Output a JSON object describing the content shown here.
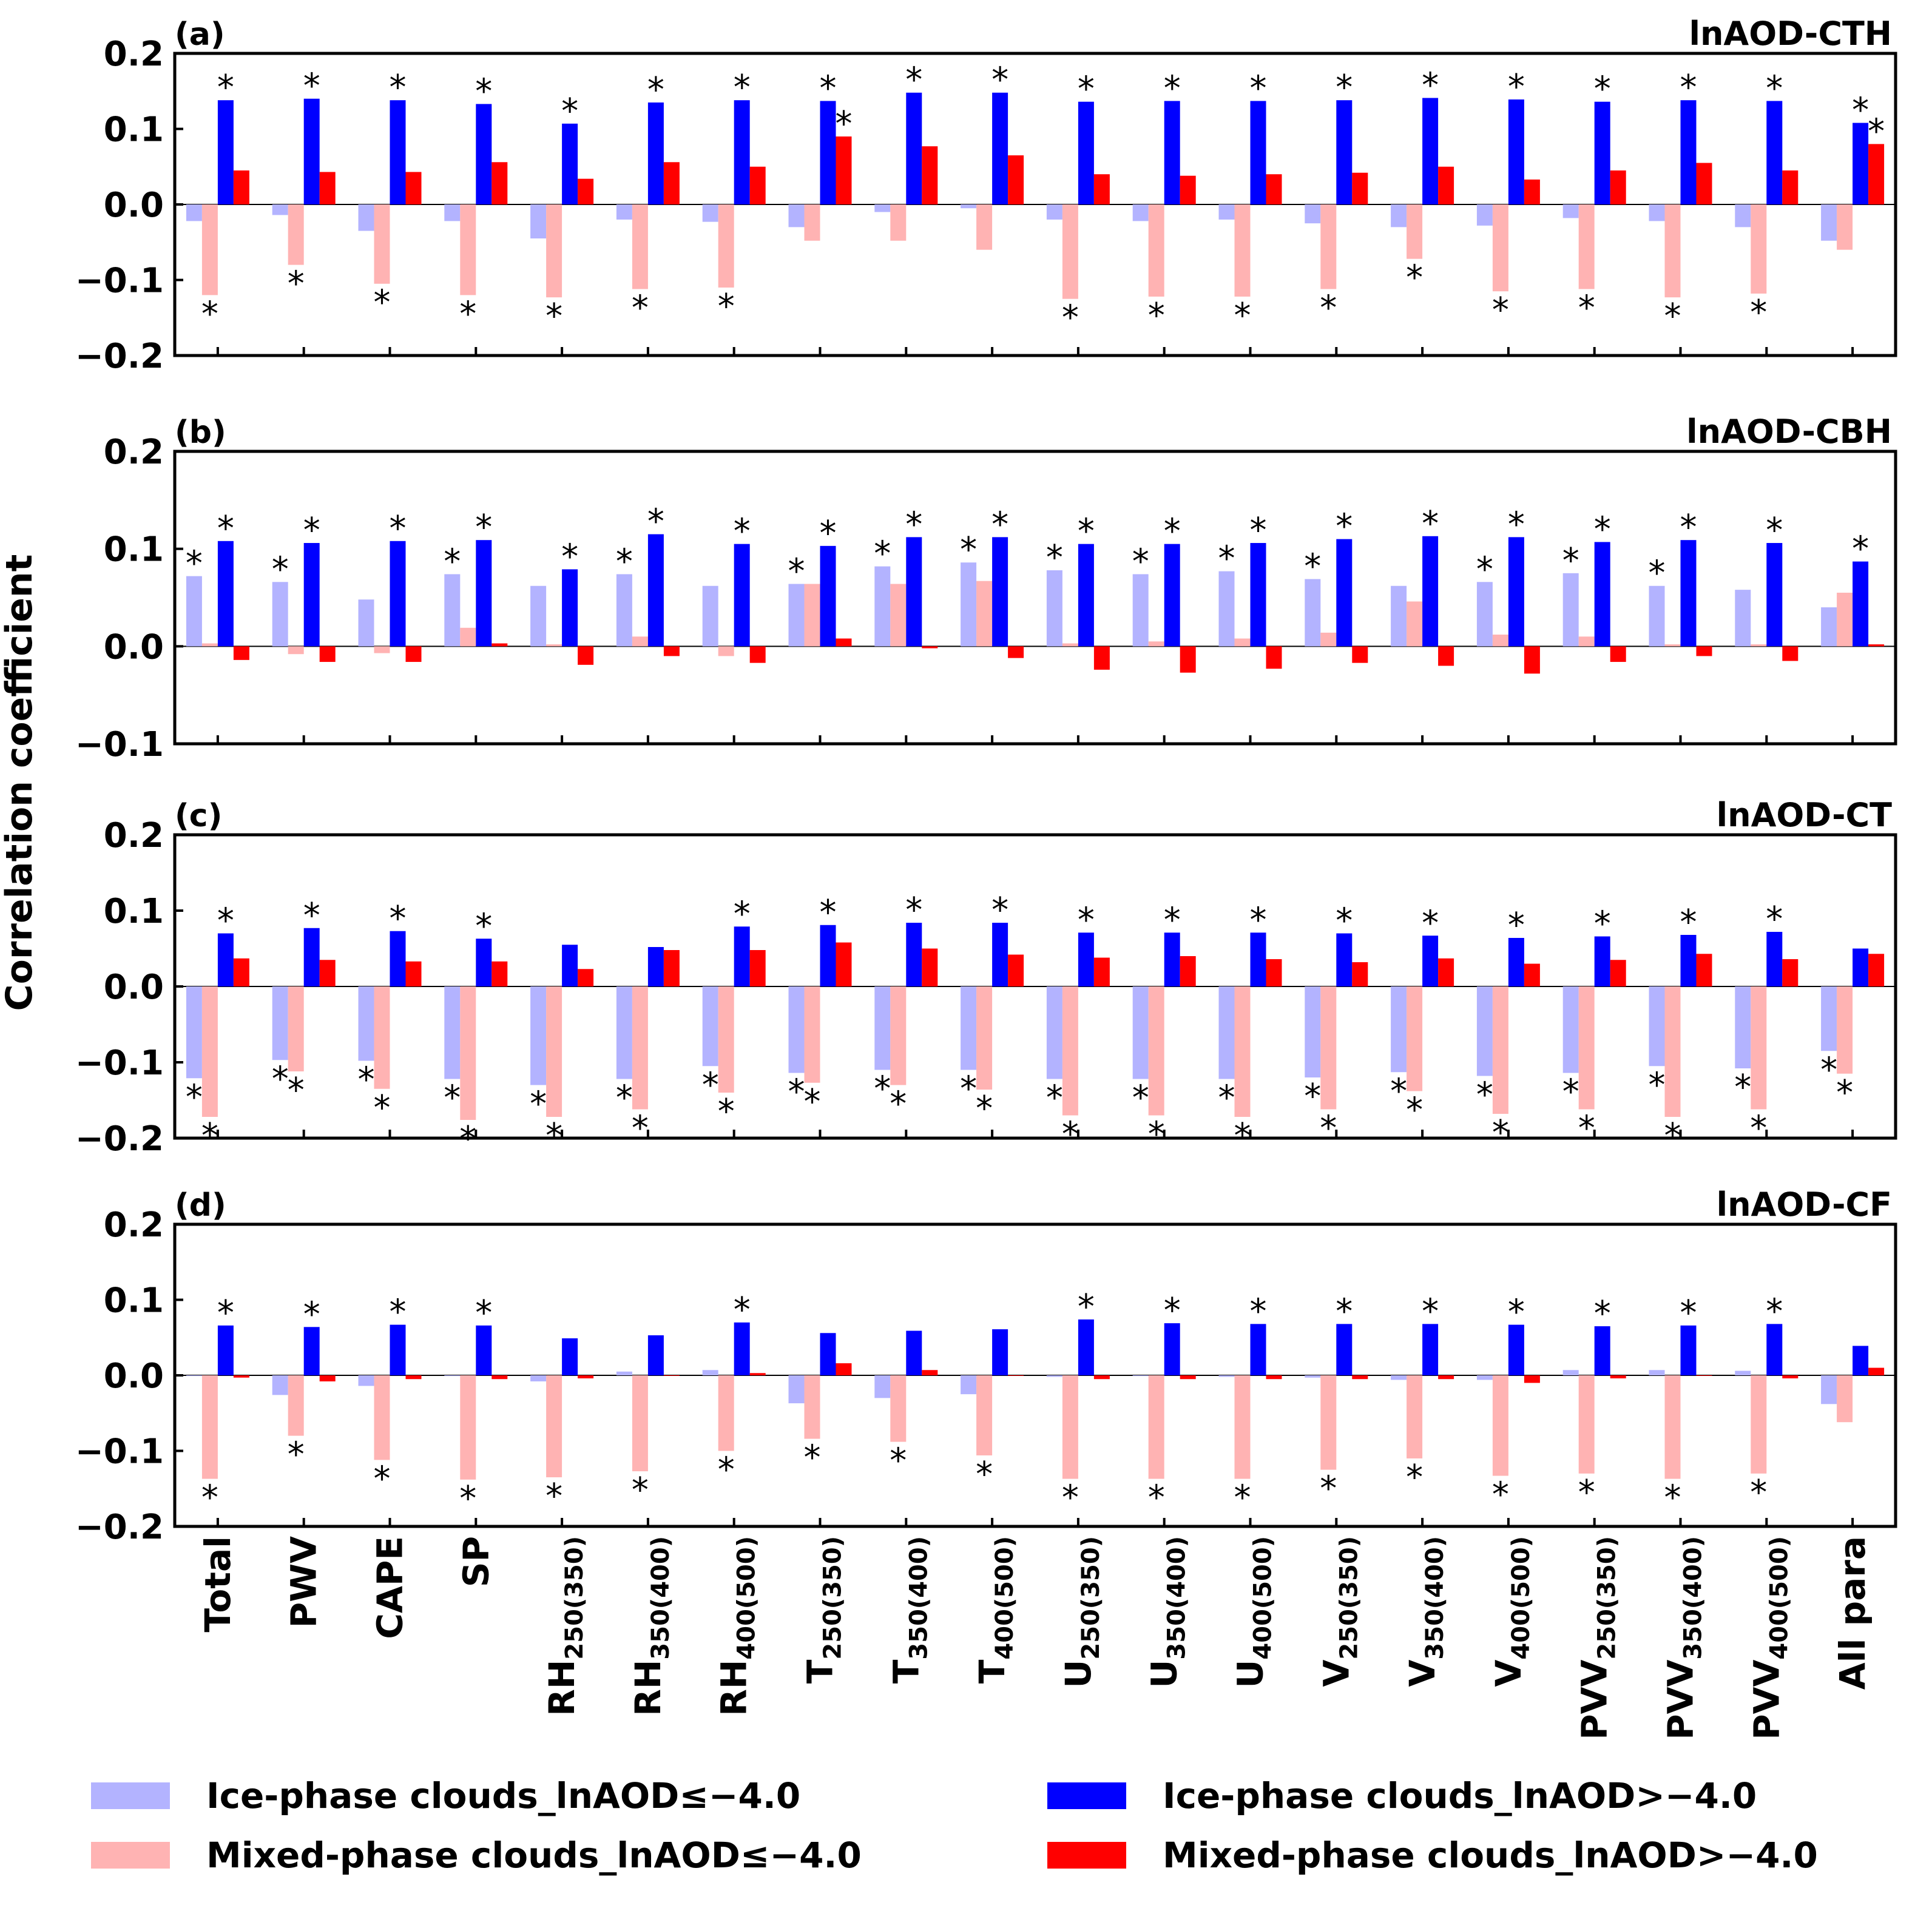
{
  "chart_data": {
    "type": "bar",
    "ylabel": "Correlation coefficient",
    "categories": [
      {
        "main": "Total",
        "sub": ""
      },
      {
        "main": "PWV",
        "sub": ""
      },
      {
        "main": "CAPE",
        "sub": ""
      },
      {
        "main": "SP",
        "sub": ""
      },
      {
        "main": "RH",
        "sub": "250(350)"
      },
      {
        "main": "RH",
        "sub": "350(400)"
      },
      {
        "main": "RH",
        "sub": "400(500)"
      },
      {
        "main": "T",
        "sub": "250(350)"
      },
      {
        "main": "T",
        "sub": "350(400)"
      },
      {
        "main": "T",
        "sub": "400(500)"
      },
      {
        "main": "U",
        "sub": "250(350)"
      },
      {
        "main": "U",
        "sub": "350(400)"
      },
      {
        "main": "U",
        "sub": "400(500)"
      },
      {
        "main": "V",
        "sub": "250(350)"
      },
      {
        "main": "V",
        "sub": "350(400)"
      },
      {
        "main": "V",
        "sub": "400(500)"
      },
      {
        "main": "PVV",
        "sub": "250(350)"
      },
      {
        "main": "PVV",
        "sub": "350(400)"
      },
      {
        "main": "PVV",
        "sub": "400(500)"
      },
      {
        "main": "All para",
        "sub": ""
      }
    ],
    "series_meta": [
      {
        "name": "Ice-phase clouds_lnAOD≤−4.0",
        "color": "#b3b3ff"
      },
      {
        "name": "Mixed-phase clouds_lnAOD≤−4.0",
        "color": "#ffb3b3"
      },
      {
        "name": "Ice-phase clouds_lnAOD>−4.0",
        "color": "#0000ff"
      },
      {
        "name": "Mixed-phase clouds_lnAOD>−4.0",
        "color": "#ff0000"
      }
    ],
    "panels": [
      {
        "label": "(a)",
        "title": "lnAOD-CTH",
        "ylim": [
          -0.2,
          0.2
        ],
        "yticks": [
          -0.2,
          -0.1,
          0.0,
          0.1,
          0.2
        ],
        "series": [
          {
            "values": [
              -0.022,
              -0.014,
              -0.035,
              -0.022,
              -0.045,
              -0.02,
              -0.023,
              -0.03,
              -0.01,
              -0.005,
              -0.02,
              -0.022,
              -0.02,
              -0.025,
              -0.03,
              -0.028,
              -0.018,
              -0.022,
              -0.03,
              -0.048
            ],
            "sig": [
              0,
              0,
              0,
              0,
              0,
              0,
              0,
              0,
              0,
              0,
              0,
              0,
              0,
              0,
              0,
              0,
              0,
              0,
              0,
              0
            ]
          },
          {
            "values": [
              -0.12,
              -0.08,
              -0.105,
              -0.12,
              -0.123,
              -0.112,
              -0.11,
              -0.048,
              -0.048,
              -0.06,
              -0.125,
              -0.122,
              -0.122,
              -0.112,
              -0.072,
              -0.115,
              -0.112,
              -0.123,
              -0.118,
              -0.06
            ],
            "sig": [
              1,
              1,
              1,
              1,
              1,
              1,
              1,
              0,
              0,
              0,
              1,
              1,
              1,
              1,
              1,
              1,
              1,
              1,
              1,
              0
            ]
          },
          {
            "values": [
              0.138,
              0.14,
              0.138,
              0.133,
              0.107,
              0.135,
              0.138,
              0.137,
              0.148,
              0.148,
              0.136,
              0.137,
              0.137,
              0.138,
              0.141,
              0.139,
              0.136,
              0.138,
              0.137,
              0.108
            ],
            "sig": [
              1,
              1,
              1,
              1,
              1,
              1,
              1,
              1,
              1,
              1,
              1,
              1,
              1,
              1,
              1,
              1,
              1,
              1,
              1,
              1
            ]
          },
          {
            "values": [
              0.045,
              0.043,
              0.043,
              0.056,
              0.034,
              0.056,
              0.05,
              0.09,
              0.077,
              0.065,
              0.04,
              0.038,
              0.04,
              0.042,
              0.05,
              0.033,
              0.045,
              0.055,
              0.045,
              0.08
            ],
            "sig": [
              0,
              0,
              0,
              0,
              0,
              0,
              0,
              1,
              0,
              0,
              0,
              0,
              0,
              0,
              0,
              0,
              0,
              0,
              0,
              1
            ]
          }
        ]
      },
      {
        "label": "(b)",
        "title": "lnAOD-CBH",
        "ylim": [
          -0.1,
          0.2
        ],
        "yticks": [
          -0.1,
          0.0,
          0.1,
          0.2
        ],
        "series": [
          {
            "values": [
              0.072,
              0.066,
              0.048,
              0.074,
              0.062,
              0.074,
              0.062,
              0.064,
              0.082,
              0.086,
              0.078,
              0.074,
              0.077,
              0.069,
              0.062,
              0.066,
              0.075,
              0.062,
              0.058,
              0.04
            ],
            "sig": [
              1,
              1,
              0,
              1,
              0,
              1,
              0,
              1,
              1,
              1,
              1,
              1,
              1,
              1,
              0,
              1,
              1,
              1,
              0,
              0
            ]
          },
          {
            "values": [
              0.003,
              -0.008,
              -0.007,
              0.019,
              0.002,
              0.01,
              -0.01,
              0.064,
              0.064,
              0.067,
              0.003,
              0.005,
              0.008,
              0.014,
              0.046,
              0.012,
              0.01,
              0.002,
              0.002,
              0.055
            ],
            "sig": [
              0,
              0,
              0,
              0,
              0,
              0,
              0,
              0,
              0,
              0,
              0,
              0,
              0,
              0,
              0,
              0,
              0,
              0,
              0,
              0
            ]
          },
          {
            "values": [
              0.108,
              0.106,
              0.108,
              0.109,
              0.079,
              0.115,
              0.105,
              0.103,
              0.112,
              0.112,
              0.105,
              0.105,
              0.106,
              0.11,
              0.113,
              0.112,
              0.107,
              0.109,
              0.106,
              0.087
            ],
            "sig": [
              1,
              1,
              1,
              1,
              1,
              1,
              1,
              1,
              1,
              1,
              1,
              1,
              1,
              1,
              1,
              1,
              1,
              1,
              1,
              1
            ]
          },
          {
            "values": [
              -0.014,
              -0.016,
              -0.016,
              0.003,
              -0.019,
              -0.01,
              -0.017,
              0.008,
              -0.002,
              -0.012,
              -0.024,
              -0.027,
              -0.023,
              -0.017,
              -0.02,
              -0.028,
              -0.016,
              -0.01,
              -0.015,
              0.002
            ],
            "sig": [
              0,
              0,
              0,
              0,
              0,
              0,
              0,
              0,
              0,
              0,
              0,
              0,
              0,
              0,
              0,
              0,
              0,
              0,
              0,
              0
            ]
          }
        ]
      },
      {
        "label": "(c)",
        "title": "lnAOD-CT",
        "ylim": [
          -0.2,
          0.2
        ],
        "yticks": [
          -0.2,
          -0.1,
          0.0,
          0.1,
          0.2
        ],
        "series": [
          {
            "values": [
              -0.121,
              -0.097,
              -0.098,
              -0.122,
              -0.13,
              -0.122,
              -0.105,
              -0.114,
              -0.11,
              -0.11,
              -0.122,
              -0.122,
              -0.122,
              -0.12,
              -0.113,
              -0.118,
              -0.114,
              -0.105,
              -0.108,
              -0.085
            ],
            "sig": [
              1,
              1,
              1,
              1,
              1,
              1,
              1,
              1,
              1,
              1,
              1,
              1,
              1,
              1,
              1,
              1,
              1,
              1,
              1,
              1
            ]
          },
          {
            "values": [
              -0.172,
              -0.112,
              -0.135,
              -0.176,
              -0.172,
              -0.162,
              -0.14,
              -0.127,
              -0.13,
              -0.136,
              -0.17,
              -0.17,
              -0.172,
              -0.162,
              -0.138,
              -0.168,
              -0.162,
              -0.172,
              -0.162,
              -0.115
            ],
            "sig": [
              1,
              1,
              1,
              1,
              1,
              1,
              1,
              1,
              1,
              1,
              1,
              1,
              1,
              1,
              1,
              1,
              1,
              1,
              1,
              1
            ]
          },
          {
            "values": [
              0.07,
              0.077,
              0.073,
              0.063,
              0.055,
              0.052,
              0.079,
              0.081,
              0.084,
              0.084,
              0.071,
              0.071,
              0.071,
              0.07,
              0.067,
              0.064,
              0.066,
              0.068,
              0.072,
              0.05
            ],
            "sig": [
              1,
              1,
              1,
              1,
              0,
              0,
              1,
              1,
              1,
              1,
              1,
              1,
              1,
              1,
              1,
              1,
              1,
              1,
              1,
              0
            ]
          },
          {
            "values": [
              0.037,
              0.035,
              0.033,
              0.033,
              0.023,
              0.048,
              0.048,
              0.058,
              0.05,
              0.042,
              0.038,
              0.04,
              0.036,
              0.032,
              0.037,
              0.03,
              0.035,
              0.043,
              0.036,
              0.043
            ],
            "sig": [
              0,
              0,
              0,
              0,
              0,
              0,
              0,
              0,
              0,
              0,
              0,
              0,
              0,
              0,
              0,
              0,
              0,
              0,
              0,
              0
            ]
          }
        ]
      },
      {
        "label": "(d)",
        "title": "lnAOD-CF",
        "ylim": [
          -0.2,
          0.2
        ],
        "yticks": [
          -0.2,
          -0.1,
          0.0,
          0.1,
          0.2
        ],
        "series": [
          {
            "values": [
              -0.001,
              -0.026,
              -0.014,
              -0.001,
              -0.008,
              0.005,
              0.007,
              -0.037,
              -0.03,
              -0.025,
              -0.002,
              -0.001,
              -0.002,
              -0.003,
              -0.006,
              -0.006,
              0.007,
              0.007,
              0.006,
              -0.038
            ],
            "sig": [
              0,
              0,
              0,
              0,
              0,
              0,
              0,
              0,
              0,
              0,
              0,
              0,
              0,
              0,
              0,
              0,
              0,
              0,
              0,
              0
            ]
          },
          {
            "values": [
              -0.137,
              -0.08,
              -0.112,
              -0.138,
              -0.135,
              -0.127,
              -0.1,
              -0.084,
              -0.088,
              -0.106,
              -0.137,
              -0.137,
              -0.137,
              -0.125,
              -0.11,
              -0.133,
              -0.13,
              -0.137,
              -0.13,
              -0.062
            ],
            "sig": [
              1,
              1,
              1,
              1,
              1,
              1,
              1,
              1,
              1,
              1,
              1,
              1,
              1,
              1,
              1,
              1,
              1,
              1,
              1,
              0
            ]
          },
          {
            "values": [
              0.066,
              0.064,
              0.067,
              0.066,
              0.049,
              0.053,
              0.07,
              0.056,
              0.059,
              0.061,
              0.074,
              0.069,
              0.068,
              0.068,
              0.068,
              0.067,
              0.065,
              0.066,
              0.068,
              0.039
            ],
            "sig": [
              1,
              1,
              1,
              1,
              0,
              0,
              1,
              0,
              0,
              0,
              1,
              1,
              1,
              1,
              1,
              1,
              1,
              1,
              1,
              0
            ]
          },
          {
            "values": [
              -0.003,
              -0.008,
              -0.005,
              -0.005,
              -0.004,
              0.0,
              0.003,
              0.016,
              0.007,
              0.0,
              -0.005,
              -0.005,
              -0.005,
              -0.005,
              -0.005,
              -0.01,
              -0.004,
              0.0,
              -0.004,
              0.01
            ],
            "sig": [
              0,
              0,
              0,
              0,
              0,
              0,
              0,
              0,
              0,
              0,
              0,
              0,
              0,
              0,
              0,
              0,
              0,
              0,
              0,
              0
            ]
          }
        ]
      }
    ]
  }
}
